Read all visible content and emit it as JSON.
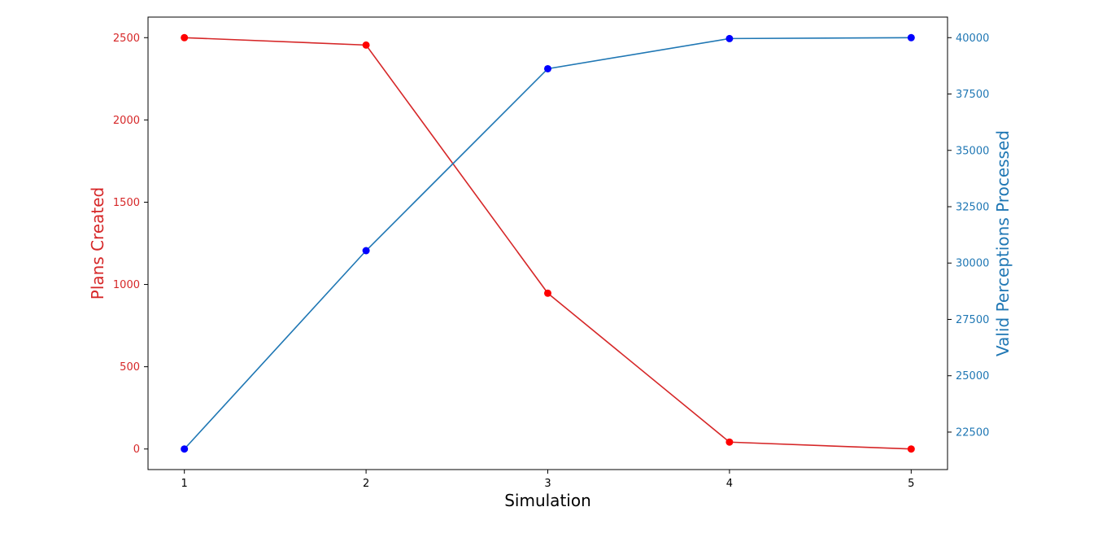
{
  "chart_data": {
    "type": "line",
    "title": "",
    "xlabel": "Simulation",
    "x": [
      1,
      2,
      3,
      4,
      5
    ],
    "x_ticks": [
      "1",
      "2",
      "3",
      "4",
      "5"
    ],
    "xlim": [
      0.8,
      5.2
    ],
    "grid": false,
    "series": [
      {
        "axis": "left",
        "ylabel": "Plans Created",
        "line_color": "#d62728",
        "marker_color": "#ff0000",
        "values": [
          2500,
          2455,
          947,
          42,
          0
        ],
        "ylim": [
          -125,
          2625
        ],
        "ticks": [
          "0",
          "500",
          "1000",
          "1500",
          "2000",
          "2500"
        ]
      },
      {
        "axis": "right",
        "ylabel": "Valid Perceptions Processed",
        "line_color": "#1f77b4",
        "marker_color": "#0000ff",
        "values": [
          21750,
          30550,
          38620,
          39960,
          40000
        ],
        "ylim": [
          20837.5,
          40912.5
        ],
        "ticks": [
          "22500",
          "25000",
          "27500",
          "30000",
          "32500",
          "35000",
          "37500",
          "40000"
        ]
      }
    ]
  }
}
